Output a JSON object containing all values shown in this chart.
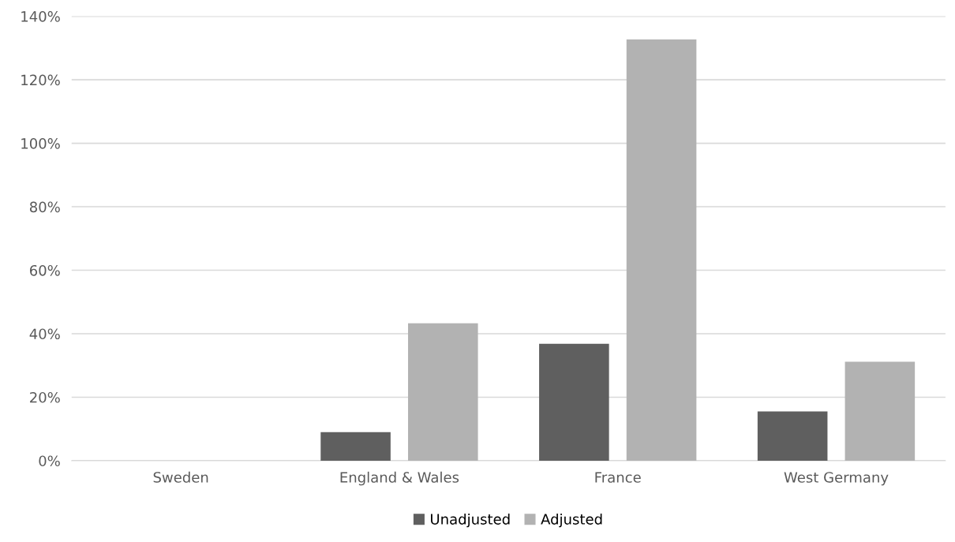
{
  "chart_data": {
    "type": "bar",
    "categories": [
      "Sweden",
      "England & Wales",
      "France",
      "West Germany"
    ],
    "series": [
      {
        "name": "Unadjusted",
        "color": "#5f5f5f",
        "values": [
          0,
          9,
          36.8,
          15.5
        ]
      },
      {
        "name": "Adjusted",
        "color": "#b2b2b2",
        "values": [
          0,
          43.3,
          132.7,
          31.2
        ]
      }
    ],
    "ylim": [
      0,
      140
    ],
    "yticks": [
      {
        "value": 0,
        "label": "0%"
      },
      {
        "value": 20,
        "label": "20%"
      },
      {
        "value": 40,
        "label": "40%"
      },
      {
        "value": 60,
        "label": "60%"
      },
      {
        "value": 80,
        "label": "80%"
      },
      {
        "value": 100,
        "label": "100%"
      },
      {
        "value": 120,
        "label": "120%"
      },
      {
        "value": 140,
        "label": "140%"
      }
    ],
    "grid": "y",
    "legend": "bottom"
  }
}
